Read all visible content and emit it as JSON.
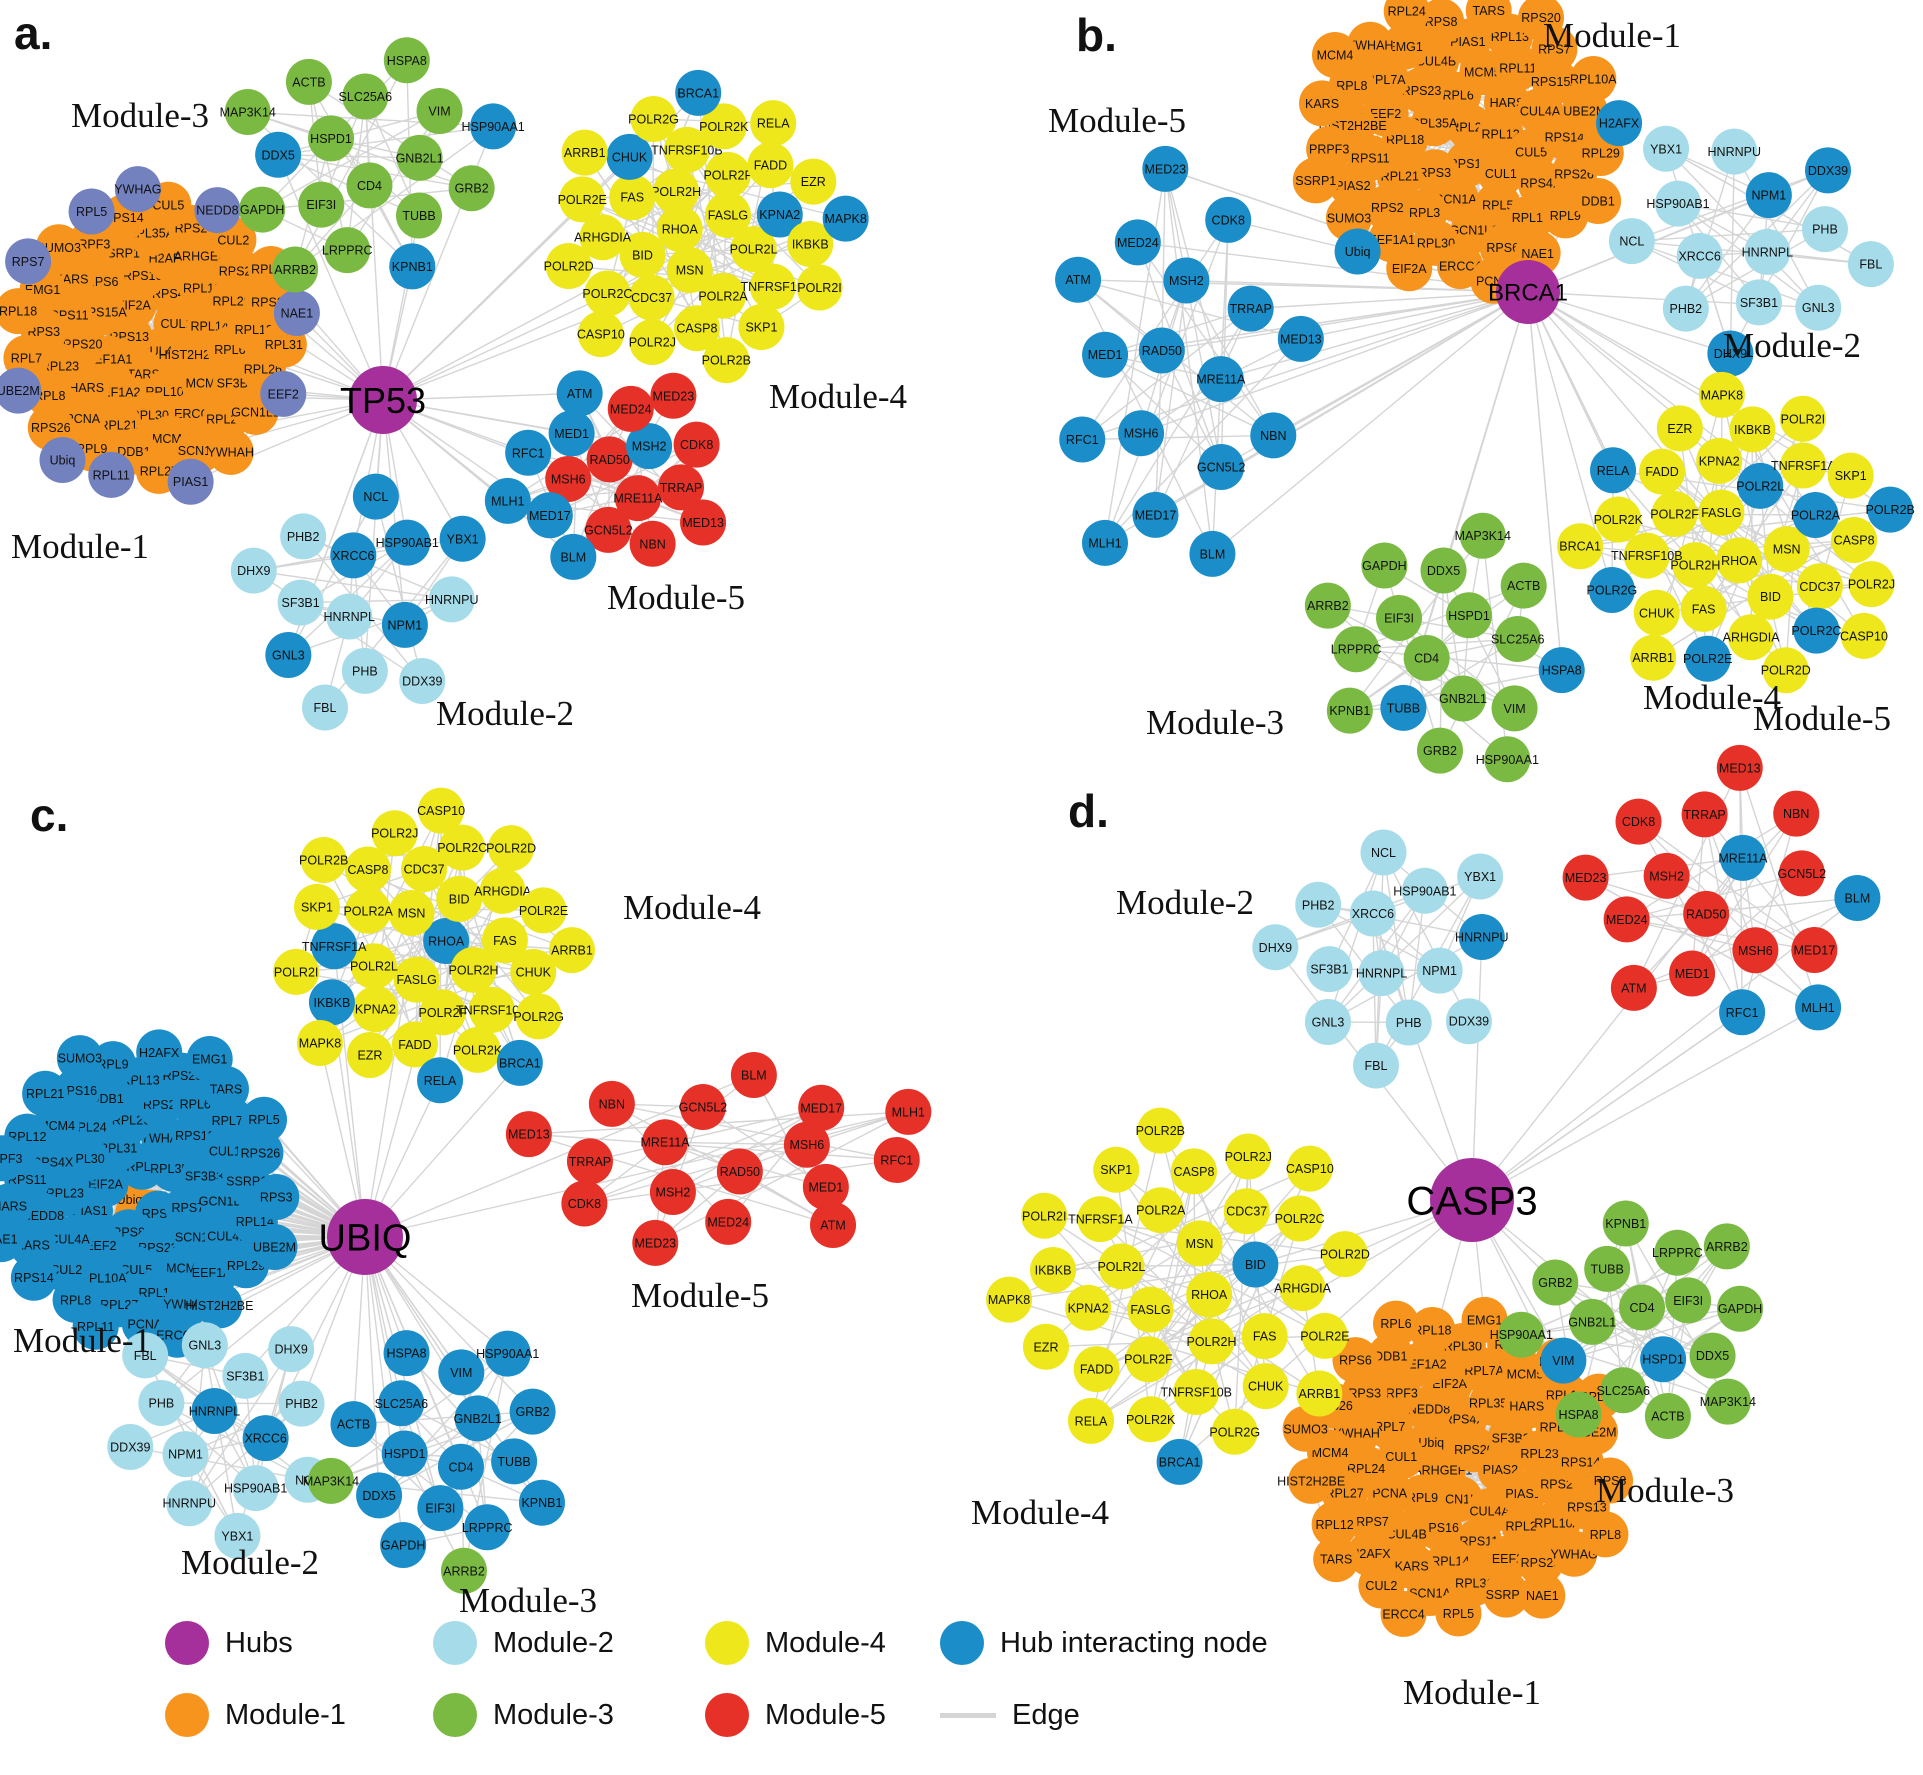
{
  "colors": {
    "hub": "#A5309B",
    "module1": "#F7941E",
    "module2": "#A6DCE9",
    "module3": "#7ABA43",
    "module4": "#EDE71C",
    "module5": "#E53128",
    "interacting": "#1B8DC8",
    "slate": "#7381BF",
    "edge": "#D5D5D5"
  },
  "gene_sets": {
    "module2": [
      "HNRNPL",
      "XRCC6",
      "NPM1",
      "SF3B1",
      "HSP90AB1",
      "PHB",
      "PHB2",
      "HNRNPU",
      "GNL3",
      "NCL",
      "DDX39",
      "DHX9",
      "YBX1",
      "FBL"
    ],
    "module3": [
      "CD4",
      "HSPD1",
      "GNB2L1",
      "EIF3I",
      "SLC25A6",
      "TUBB",
      "DDX5",
      "VIM",
      "LRPPRC",
      "ACTB",
      "GRB2",
      "GAPDH",
      "HSPA8",
      "KPNB1",
      "MAP3K14",
      "HSP90AA1",
      "ARRB2"
    ],
    "module4": [
      "RHOA",
      "FASLG",
      "MSN",
      "POLR2H",
      "POLR2L",
      "BID",
      "POLR2F",
      "POLR2A",
      "FAS",
      "KPNA2",
      "CDC37",
      "TNFRSF10B",
      "TNFRSF1A",
      "ARHGDIA",
      "FADD",
      "CASP8",
      "CHUK",
      "IKBKB",
      "POLR2C",
      "POLR2K",
      "SKP1",
      "POLR2E",
      "EZR",
      "POLR2J",
      "POLR2G",
      "POLR2I",
      "POLR2D",
      "RELA",
      "POLR2B",
      "ARRB1",
      "MAPK8",
      "CASP10",
      "BRCA1"
    ],
    "module5": [
      "RAD50",
      "MRE11A",
      "MSH6",
      "MSH2",
      "GCN5L2",
      "MED1",
      "TRRAP",
      "MED17",
      "MED24",
      "NBN",
      "RFC1",
      "CDK8",
      "BLM",
      "ATM",
      "MED13",
      "MLH1",
      "MED23"
    ],
    "module1_a": [
      "CUL4B",
      "RPS13",
      "CUL1",
      "TARS",
      "EIF2A",
      "HIST2H2BE",
      "EEF1A1",
      "RPS4X",
      "RPL10A",
      "RPS15A",
      "RPL14",
      "EEF1A2",
      "RPS16",
      "MCM5",
      "RPS20",
      "RPL13",
      "RPL30",
      "RPS6",
      "RPL6",
      "HARS",
      "H2AFX",
      "ERCC4",
      "RPS11",
      "RPL29",
      "RPL21",
      "SSRP1",
      "SF3B3",
      "RPL23",
      "ARHGEF1",
      "MCM4",
      "KARS",
      "RPL12",
      "PCNA",
      "RPL35A",
      "RPL24",
      "RPS3",
      "RPS23",
      "DDB1",
      "PRPF3",
      "RPL26",
      "RPL8",
      "RPS2",
      "SCN1A",
      "EMG1",
      "RPS8",
      "RPL9",
      "RPS14",
      "GCN1L1",
      "RPL7",
      "CUL2",
      "RPL27",
      "SUMO3",
      "RPL31",
      "RPS26",
      "CUL5",
      "YWHAH",
      "RPL18",
      "RPL7A",
      "RPL11",
      "RPL5",
      "EEF2",
      "UBE2M",
      "NEDD8",
      "PIAS1",
      "RPS7",
      "NAE1",
      "Ubiq",
      "YWHAG"
    ],
    "module1_b": [
      "RPL23",
      "RPS13",
      "RPL35A",
      "RPL12",
      "RPS3",
      "RPL6",
      "CUL1",
      "RPL18",
      "HARS",
      "SCN1A",
      "RPS23",
      "CUL5",
      "RPL21",
      "MCM5",
      "RPL5",
      "EEF2",
      "CUL4A",
      "RPL3",
      "CUL4B",
      "RPS4X",
      "RPS11",
      "RPL11",
      "GCN1L1",
      "RPL7A",
      "RPS14",
      "RPS2",
      "PIAS1",
      "RPL14",
      "HIST2H2BE",
      "RPS15A",
      "RPL30",
      "EMG1",
      "RPS26",
      "PIAS2",
      "RPL13",
      "RPS6",
      "RPL8",
      "UBE2M",
      "EEF1A1",
      "RPS8",
      "RPL9",
      "PRPF3",
      "RPS7",
      "ERCC4",
      "YWHAH",
      "RPL29",
      "SUMO3",
      "TARS",
      "NAE1",
      "KARS",
      "RPL10A",
      "EIF2A",
      "RPL24",
      "DDB1",
      "SSRP1",
      "RPS20",
      "PCNA",
      "MCM4",
      "H2AFX",
      "Ubiq"
    ],
    "module1_c": [
      "Ubiq",
      "RPL7",
      "RPS6",
      "EIF2A",
      "RPL35A",
      "RPS8",
      "RPL31",
      "RPS7",
      "PIAS1",
      "YWHAG",
      "RPS23",
      "RPL30",
      "SF3B3",
      "EEF2",
      "RPL26",
      "SCN1A",
      "RPL23",
      "RPS13",
      "CUL5",
      "RPL24",
      "GCN1L1",
      "CUL4A",
      "RPS2",
      "MCM5",
      "RPS4X",
      "CUL1",
      "RPL10A",
      "DDB1",
      "CUL4B",
      "NEDD8",
      "RPL6",
      "RPL18",
      "MCM4",
      "SSRP1",
      "CUL2",
      "RPL13",
      "EEF1A1",
      "RPS11",
      "RPL7A",
      "RPL27",
      "RPS16",
      "RPL14",
      "KARS",
      "RPS20",
      "YWHAH",
      "RPL12",
      "RPS26",
      "RPL8",
      "RPL9",
      "RPL29",
      "HARS",
      "TARS",
      "PCNA",
      "RPL21",
      "RPS3",
      "RPS14",
      "H2AFX",
      "HIST2H2BE",
      "PRPF3",
      "RPL5",
      "RPL11",
      "SUMO3",
      "UBE2M",
      "NAE1",
      "EMG1",
      "ERCC4"
    ],
    "module1_d": [
      "ARHGEF1",
      "RPS20",
      "GCN1L1",
      "Ubiq",
      "PIAS2",
      "RPL9",
      "RPS4X",
      "CUL4A",
      "CUL1",
      "SF3B3",
      "RPS16",
      "NEDD8",
      "PIAS1",
      "PCNA",
      "RPL35A",
      "RPS11",
      "RPL7",
      "RPL23",
      "CUL4B",
      "EIF2A",
      "RPL26",
      "RPL24",
      "HARS",
      "RPL14",
      "PRPF3",
      "RPS2",
      "RPS7",
      "RPL7A",
      "EEF2",
      "YWHAH",
      "RPL29",
      "KARS",
      "EEF1A2",
      "RPL10A",
      "RPL27",
      "MCM5",
      "RPL31",
      "RPS3",
      "RPS14",
      "H2AFX",
      "RPL30",
      "RPS23",
      "MCM4",
      "RPL11",
      "SCN1A",
      "DDB1",
      "RPS13",
      "RPL12",
      "RPL3",
      "SSRP1",
      "RPS26",
      "UBE2M",
      "CUL2",
      "RPL18",
      "YWHAG",
      "HIST2H2BE",
      "RPL13",
      "RPL5",
      "RPS6",
      "RPS8",
      "TARS",
      "EMG1",
      "NAE1",
      "SUMO3",
      "RPL21",
      "ERCC4",
      "RPL6",
      "RPL8"
    ]
  },
  "panels": [
    {
      "letter": "a.",
      "hub_label": "TP53",
      "clusters": [
        {
          "label": "Module-1",
          "color_key": "module1",
          "genes": "module1_a",
          "node_color_overrides": {
            "RPL11": "slate",
            "RPL5": "slate",
            "EEF2": "slate",
            "UBE2M": "slate",
            "NEDD8": "slate",
            "PIAS1": "slate",
            "RPS7": "slate",
            "NAE1": "slate",
            "Ubiq": "slate",
            "YWHAG": "slate"
          }
        },
        {
          "label": "Module-2",
          "color_key": "module2",
          "genes": "module2",
          "node_color_overrides": {
            "XRCC6": "interacting",
            "NPM1": "interacting",
            "HSP90AB1": "interacting",
            "GNL3": "interacting",
            "NCL": "interacting",
            "YBX1": "interacting"
          }
        },
        {
          "label": "Module-3",
          "color_key": "module3",
          "genes": "module3",
          "node_color_overrides": {
            "DDX5": "interacting",
            "KPNB1": "interacting",
            "HSP90AA1": "interacting"
          }
        },
        {
          "label": "Module-4",
          "color_key": "module4",
          "genes": "module4",
          "node_color_overrides": {
            "KPNA2": "interacting",
            "CHUK": "interacting",
            "MAPK8": "interacting",
            "BRCA1": "interacting"
          }
        },
        {
          "label": "Module-5",
          "color_key": "module5",
          "genes": "module5",
          "node_color_overrides": {
            "MSH2": "interacting",
            "MED17": "interacting",
            "MED1": "interacting",
            "BLM": "interacting",
            "ATM": "interacting",
            "RFC1": "interacting",
            "MLH1": "interacting"
          }
        }
      ]
    },
    {
      "letter": "b.",
      "hub_label": "BRCA1",
      "clusters": [
        {
          "label": "Module-1",
          "color_key": "module1",
          "genes": "module1_b",
          "node_color_overrides": {
            "H2AFX": "interacting",
            "Ubiq": "interacting"
          }
        },
        {
          "label": "Module-2",
          "color_key": "module2",
          "genes": "module2",
          "node_color_overrides": {
            "NPM1": "interacting",
            "DHX9": "interacting",
            "DDX39": "interacting"
          }
        },
        {
          "label": "Module-3",
          "color_key": "module3",
          "genes": "module3",
          "node_color_overrides": {
            "TUBB": "interacting",
            "HSPA8": "interacting"
          }
        },
        {
          "label": "Module-4",
          "color_key": "module4",
          "genes": "module4",
          "node_color_overrides": {
            "POLR2A": "interacting",
            "POLR2B": "interacting",
            "POLR2C": "interacting",
            "POLR2L": "interacting",
            "POLR2E": "interacting",
            "POLR2G": "interacting",
            "RELA": "interacting"
          }
        },
        {
          "label": "Module-5",
          "color_key": "interacting",
          "genes": "module5",
          "node_color_overrides": {}
        }
      ]
    },
    {
      "letter": "c.",
      "hub_label": "UBIQ",
      "clusters": [
        {
          "label": "Module-1",
          "color_key": "interacting",
          "genes": "module1_c",
          "node_color_overrides": {
            "Ubiq": "module1"
          },
          "star_nodes": [
            "Ubiq"
          ]
        },
        {
          "label": "Module-2",
          "color_key": "module2",
          "genes": "module2",
          "node_color_overrides": {
            "HNRNPL": "interacting",
            "XRCC6": "interacting"
          }
        },
        {
          "label": "Module-3",
          "color_key": "interacting",
          "genes": "module3",
          "node_color_overrides": {
            "ARRB2": "module3",
            "MAP3K14": "module3"
          }
        },
        {
          "label": "Module-4",
          "color_key": "module4",
          "genes": "module4",
          "node_color_overrides": {
            "BRCA1": "interacting",
            "IKBKB": "interacting",
            "RELA": "interacting",
            "TNFRSF1A": "interacting",
            "RHOA": "interacting"
          }
        },
        {
          "label": "Module-5",
          "color_key": "module5",
          "genes": "module5",
          "node_color_overrides": {}
        }
      ]
    },
    {
      "letter": "d.",
      "hub_label": "CASP3",
      "clusters": [
        {
          "label": "Module-1",
          "color_key": "module1",
          "genes": "module1_d",
          "node_color_overrides": {}
        },
        {
          "label": "Module-2",
          "color_key": "module2",
          "genes": "module2",
          "node_color_overrides": {
            "HNRNPU": "interacting"
          }
        },
        {
          "label": "Module-3",
          "color_key": "module3",
          "genes": "module3",
          "node_color_overrides": {
            "VIM": "interacting",
            "HSPD1": "interacting"
          }
        },
        {
          "label": "Module-4",
          "color_key": "module4",
          "genes": "module4",
          "node_color_overrides": {
            "BRCA1": "interacting",
            "BID": "interacting"
          }
        },
        {
          "label": "Module-5",
          "color_key": "module5",
          "genes": "module5",
          "node_color_overrides": {
            "MRE11A": "interacting",
            "MLH1": "interacting",
            "RFC1": "interacting",
            "BLM": "interacting"
          }
        }
      ]
    }
  ],
  "legend": {
    "items": [
      {
        "label": "Hubs",
        "color_key": "hub"
      },
      {
        "label": "Module-1",
        "color_key": "module1"
      },
      {
        "label": "Module-2",
        "color_key": "module2"
      },
      {
        "label": "Module-3",
        "color_key": "module3"
      },
      {
        "label": "Module-4",
        "color_key": "module4"
      },
      {
        "label": "Module-5",
        "color_key": "module5"
      },
      {
        "label": "Hub interacting node",
        "color_key": "interacting"
      },
      {
        "label": "Edge",
        "color_key": "edge"
      }
    ]
  }
}
